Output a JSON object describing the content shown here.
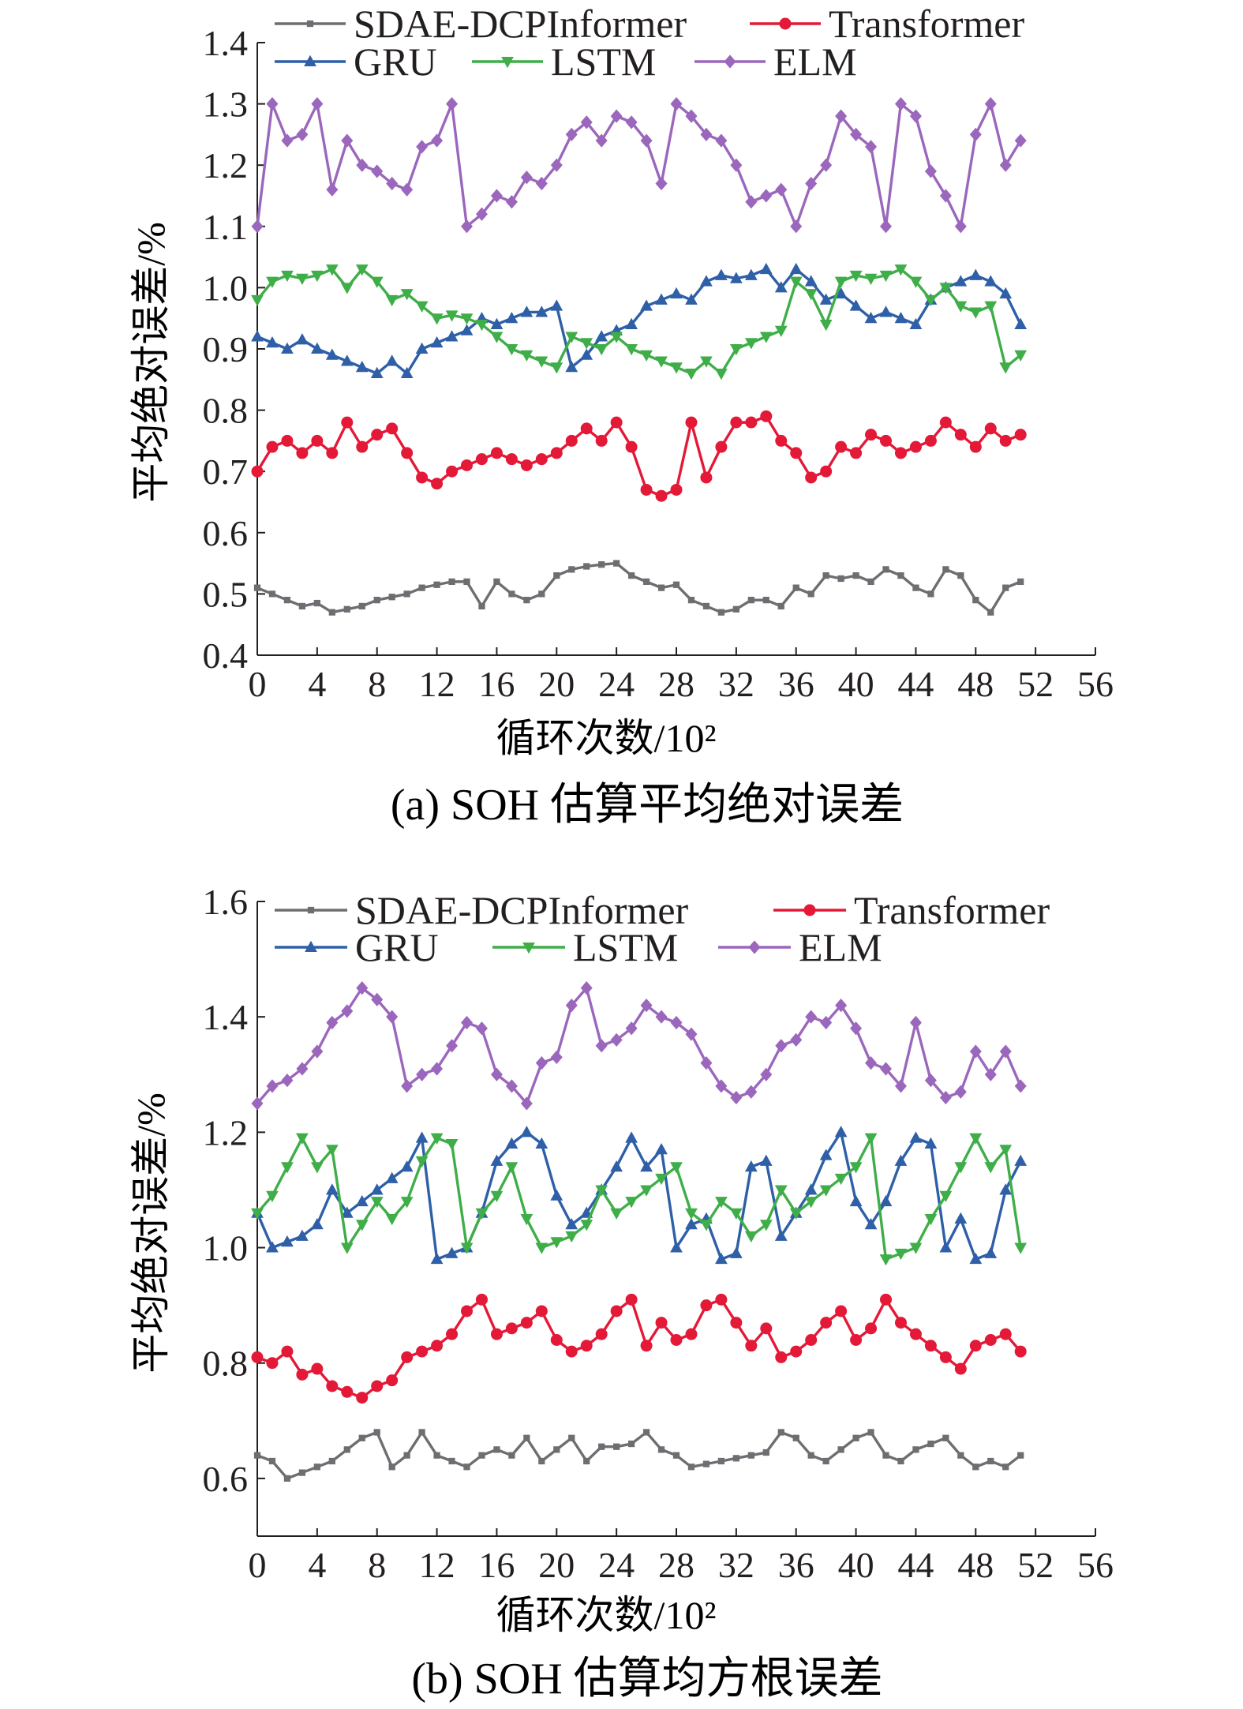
{
  "chart_data": [
    {
      "type": "line",
      "caption": "(a) SOH 估算平均绝对误差",
      "xlabel": "循环次数/10²",
      "ylabel": "平均绝对误差/%",
      "xlim": [
        0,
        56
      ],
      "ylim": [
        0.4,
        1.4
      ],
      "xticks": [
        0,
        4,
        8,
        12,
        16,
        20,
        24,
        28,
        32,
        36,
        40,
        44,
        48,
        52,
        56
      ],
      "yticks": [
        0.4,
        0.5,
        0.6,
        0.7,
        0.8,
        0.9,
        1.0,
        1.1,
        1.2,
        1.3,
        1.4
      ],
      "ytick_labels": [
        "0.4",
        "0.5",
        "0.6",
        "0.7",
        "0.8",
        "0.9",
        "1.0",
        "1.1",
        "1.2",
        "1.3",
        "1.4"
      ],
      "grid": false,
      "legend": "top",
      "x": [
        0,
        1,
        2,
        3,
        4,
        5,
        6,
        7,
        8,
        9,
        10,
        11,
        12,
        13,
        14,
        15,
        16,
        17,
        18,
        19,
        20,
        21,
        22,
        23,
        24,
        25,
        26,
        27,
        28,
        29,
        30,
        31,
        32,
        33,
        34,
        35,
        36,
        37,
        38,
        39,
        40,
        41,
        42,
        43,
        44,
        45,
        46,
        47,
        48,
        49,
        50,
        51
      ],
      "series": [
        {
          "name": "SDAE-DCPInformer",
          "color": "#6d6e71",
          "marker": "square",
          "values": [
            0.51,
            0.5,
            0.49,
            0.48,
            0.485,
            0.47,
            0.475,
            0.48,
            0.49,
            0.495,
            0.5,
            0.51,
            0.515,
            0.52,
            0.52,
            0.48,
            0.52,
            0.5,
            0.49,
            0.5,
            0.53,
            0.54,
            0.545,
            0.548,
            0.55,
            0.53,
            0.52,
            0.51,
            0.515,
            0.49,
            0.48,
            0.47,
            0.475,
            0.49,
            0.49,
            0.48,
            0.51,
            0.5,
            0.53,
            0.525,
            0.53,
            0.52,
            0.54,
            0.53,
            0.51,
            0.5,
            0.54,
            0.53,
            0.49,
            0.47,
            0.51,
            0.52
          ]
        },
        {
          "name": "Transformer",
          "color": "#e31937",
          "marker": "circle",
          "values": [
            0.7,
            0.74,
            0.75,
            0.73,
            0.75,
            0.73,
            0.78,
            0.74,
            0.76,
            0.77,
            0.73,
            0.69,
            0.68,
            0.7,
            0.71,
            0.72,
            0.73,
            0.72,
            0.71,
            0.72,
            0.73,
            0.75,
            0.77,
            0.75,
            0.78,
            0.74,
            0.67,
            0.66,
            0.67,
            0.78,
            0.69,
            0.74,
            0.78,
            0.78,
            0.79,
            0.75,
            0.73,
            0.69,
            0.7,
            0.74,
            0.73,
            0.76,
            0.75,
            0.73,
            0.74,
            0.75,
            0.78,
            0.76,
            0.74,
            0.77,
            0.75,
            0.76
          ]
        },
        {
          "name": "GRU",
          "color": "#2e5fa7",
          "marker": "triangle-up",
          "values": [
            0.92,
            0.91,
            0.9,
            0.915,
            0.9,
            0.89,
            0.88,
            0.87,
            0.86,
            0.88,
            0.86,
            0.9,
            0.91,
            0.92,
            0.93,
            0.95,
            0.94,
            0.95,
            0.96,
            0.96,
            0.97,
            0.87,
            0.89,
            0.92,
            0.93,
            0.94,
            0.97,
            0.98,
            0.99,
            0.98,
            1.01,
            1.02,
            1.015,
            1.02,
            1.03,
            1.0,
            1.03,
            1.01,
            0.98,
            0.99,
            0.97,
            0.95,
            0.96,
            0.95,
            0.94,
            0.98,
            1.0,
            1.01,
            1.02,
            1.01,
            0.99,
            0.94
          ]
        },
        {
          "name": "LSTM",
          "color": "#3fae49",
          "marker": "triangle-down",
          "values": [
            0.98,
            1.01,
            1.02,
            1.015,
            1.02,
            1.03,
            1.0,
            1.03,
            1.01,
            0.98,
            0.99,
            0.97,
            0.95,
            0.955,
            0.95,
            0.94,
            0.92,
            0.9,
            0.89,
            0.88,
            0.87,
            0.92,
            0.91,
            0.9,
            0.92,
            0.9,
            0.89,
            0.88,
            0.87,
            0.86,
            0.88,
            0.86,
            0.9,
            0.91,
            0.92,
            0.93,
            1.01,
            0.99,
            0.94,
            1.01,
            1.02,
            1.015,
            1.02,
            1.03,
            1.01,
            0.98,
            1.0,
            0.97,
            0.96,
            0.97,
            0.87,
            0.89
          ]
        },
        {
          "name": "ELM",
          "color": "#9b67bd",
          "marker": "diamond",
          "values": [
            1.1,
            1.3,
            1.24,
            1.25,
            1.3,
            1.16,
            1.24,
            1.2,
            1.19,
            1.17,
            1.16,
            1.23,
            1.24,
            1.3,
            1.1,
            1.12,
            1.15,
            1.14,
            1.18,
            1.17,
            1.2,
            1.25,
            1.27,
            1.24,
            1.28,
            1.27,
            1.24,
            1.17,
            1.3,
            1.28,
            1.25,
            1.24,
            1.2,
            1.14,
            1.15,
            1.16,
            1.1,
            1.17,
            1.2,
            1.28,
            1.25,
            1.23,
            1.1,
            1.3,
            1.28,
            1.19,
            1.15,
            1.1,
            1.25,
            1.3,
            1.2,
            1.24
          ]
        }
      ]
    },
    {
      "type": "line",
      "caption": "(b) SOH 估算均方根误差",
      "xlabel": "循环次数/10²",
      "ylabel": "平均绝对误差/%",
      "xlim": [
        0,
        56
      ],
      "ylim": [
        0.5,
        1.6
      ],
      "xticks": [
        0,
        4,
        8,
        12,
        16,
        20,
        24,
        28,
        32,
        36,
        40,
        44,
        48,
        52,
        56
      ],
      "yticks": [
        0.6,
        0.8,
        1.0,
        1.2,
        1.4,
        1.6
      ],
      "ytick_labels": [
        "0.6",
        "0.8",
        "1.0",
        "1.2",
        "1.4",
        "1.6"
      ],
      "grid": false,
      "legend": "top",
      "x": [
        0,
        1,
        2,
        3,
        4,
        5,
        6,
        7,
        8,
        9,
        10,
        11,
        12,
        13,
        14,
        15,
        16,
        17,
        18,
        19,
        20,
        21,
        22,
        23,
        24,
        25,
        26,
        27,
        28,
        29,
        30,
        31,
        32,
        33,
        34,
        35,
        36,
        37,
        38,
        39,
        40,
        41,
        42,
        43,
        44,
        45,
        46,
        47,
        48,
        49,
        50,
        51
      ],
      "series": [
        {
          "name": "SDAE-DCPInformer",
          "color": "#6d6e71",
          "marker": "square",
          "values": [
            0.64,
            0.63,
            0.6,
            0.61,
            0.62,
            0.63,
            0.65,
            0.67,
            0.68,
            0.62,
            0.64,
            0.68,
            0.64,
            0.63,
            0.62,
            0.64,
            0.65,
            0.64,
            0.67,
            0.63,
            0.65,
            0.67,
            0.63,
            0.655,
            0.655,
            0.66,
            0.68,
            0.65,
            0.64,
            0.62,
            0.625,
            0.63,
            0.635,
            0.64,
            0.645,
            0.68,
            0.67,
            0.64,
            0.63,
            0.65,
            0.67,
            0.68,
            0.64,
            0.63,
            0.65,
            0.66,
            0.67,
            0.64,
            0.62,
            0.63,
            0.62,
            0.64
          ]
        },
        {
          "name": "Transformer",
          "color": "#e31937",
          "marker": "circle",
          "values": [
            0.81,
            0.8,
            0.82,
            0.78,
            0.79,
            0.76,
            0.75,
            0.74,
            0.76,
            0.77,
            0.81,
            0.82,
            0.83,
            0.85,
            0.89,
            0.91,
            0.85,
            0.86,
            0.87,
            0.89,
            0.84,
            0.82,
            0.83,
            0.85,
            0.89,
            0.91,
            0.83,
            0.87,
            0.84,
            0.85,
            0.9,
            0.91,
            0.87,
            0.83,
            0.86,
            0.81,
            0.82,
            0.84,
            0.87,
            0.89,
            0.84,
            0.86,
            0.91,
            0.87,
            0.85,
            0.83,
            0.81,
            0.79,
            0.83,
            0.84,
            0.85,
            0.82
          ]
        },
        {
          "name": "GRU",
          "color": "#2e5fa7",
          "marker": "triangle-up",
          "values": [
            1.06,
            1.0,
            1.01,
            1.02,
            1.04,
            1.1,
            1.06,
            1.08,
            1.1,
            1.12,
            1.14,
            1.19,
            0.98,
            0.99,
            1.0,
            1.06,
            1.15,
            1.18,
            1.2,
            1.18,
            1.09,
            1.04,
            1.06,
            1.1,
            1.14,
            1.19,
            1.14,
            1.17,
            1.0,
            1.04,
            1.05,
            0.98,
            0.99,
            1.14,
            1.15,
            1.02,
            1.06,
            1.1,
            1.16,
            1.2,
            1.08,
            1.04,
            1.08,
            1.15,
            1.19,
            1.18,
            1.0,
            1.05,
            0.98,
            0.99,
            1.1,
            1.15
          ]
        },
        {
          "name": "LSTM",
          "color": "#3fae49",
          "marker": "triangle-down",
          "values": [
            1.06,
            1.09,
            1.14,
            1.19,
            1.14,
            1.17,
            1.0,
            1.04,
            1.08,
            1.05,
            1.08,
            1.15,
            1.19,
            1.18,
            1.0,
            1.06,
            1.09,
            1.14,
            1.05,
            1.0,
            1.01,
            1.02,
            1.04,
            1.1,
            1.06,
            1.08,
            1.1,
            1.12,
            1.14,
            1.06,
            1.04,
            1.08,
            1.06,
            1.02,
            1.04,
            1.1,
            1.06,
            1.08,
            1.1,
            1.12,
            1.14,
            1.19,
            0.98,
            0.99,
            1.0,
            1.05,
            1.09,
            1.14,
            1.19,
            1.14,
            1.17,
            1.0
          ]
        },
        {
          "name": "ELM",
          "color": "#9b67bd",
          "marker": "diamond",
          "values": [
            1.25,
            1.28,
            1.29,
            1.31,
            1.34,
            1.39,
            1.41,
            1.45,
            1.43,
            1.4,
            1.28,
            1.3,
            1.31,
            1.35,
            1.39,
            1.38,
            1.3,
            1.28,
            1.25,
            1.32,
            1.33,
            1.42,
            1.45,
            1.35,
            1.36,
            1.38,
            1.42,
            1.4,
            1.39,
            1.37,
            1.32,
            1.28,
            1.26,
            1.27,
            1.3,
            1.35,
            1.36,
            1.4,
            1.39,
            1.42,
            1.38,
            1.32,
            1.31,
            1.28,
            1.39,
            1.29,
            1.26,
            1.27,
            1.34,
            1.3,
            1.34,
            1.28
          ]
        }
      ]
    }
  ]
}
